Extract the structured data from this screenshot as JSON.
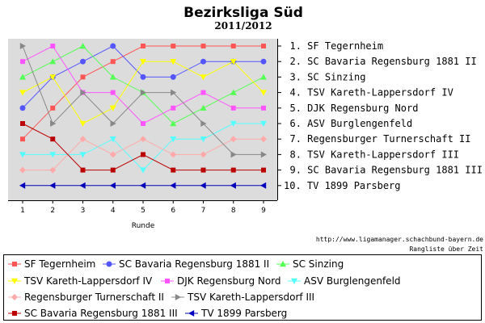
{
  "chart_data": {
    "type": "line",
    "title": "Bezirksliga Süd",
    "subtitle": "2011/2012",
    "xlabel": "Runde",
    "ylabel": "",
    "x": [
      1,
      2,
      3,
      4,
      5,
      6,
      7,
      8,
      9
    ],
    "ylim": [
      1,
      10
    ],
    "y_inverted": true,
    "grid": false,
    "legend_position": "bottom",
    "rank_labels": [
      "1. SF Tegernheim",
      "2. SC Bavaria Regensburg 1881 II",
      "3. SC Sinzing",
      "4. TSV Kareth-Lappersdorf IV",
      "5. DJK Regensburg Nord",
      "6. ASV Burglengenfeld",
      "7. Regensburger Turnerschaft II",
      "8. TSV Kareth-Lappersdorf III",
      "9. SC Bavaria Regensburg 1881 III",
      "10. TV 1899 Parsberg"
    ],
    "credit": [
      "http://www.ligamanager.schachbund-bayern.de",
      "Rangliste über Zeit"
    ],
    "series": [
      {
        "name": "SF Tegernheim",
        "color": "#ff5555",
        "marker": "square",
        "values": [
          7,
          5,
          3,
          2,
          1,
          1,
          1,
          1,
          1
        ]
      },
      {
        "name": "SC Bavaria Regensburg 1881 II",
        "color": "#5555ff",
        "marker": "circle",
        "values": [
          5,
          3,
          2,
          1,
          3,
          3,
          2,
          2,
          2
        ]
      },
      {
        "name": "SC Sinzing",
        "color": "#55ff55",
        "marker": "triangle-up",
        "values": [
          3,
          2,
          1,
          3,
          4,
          6,
          5,
          4,
          3
        ]
      },
      {
        "name": "TSV Kareth-Lappersdorf IV",
        "color": "#ffff00",
        "marker": "triangle-down",
        "values": [
          4,
          3,
          6,
          5,
          2,
          2,
          3,
          2,
          4
        ]
      },
      {
        "name": "DJK Regensburg Nord",
        "color": "#ff55ff",
        "marker": "square",
        "values": [
          2,
          1,
          4,
          4,
          6,
          5,
          4,
          5,
          5
        ]
      },
      {
        "name": "ASV Burglengenfeld",
        "color": "#55ffff",
        "marker": "triangle-down",
        "values": [
          8,
          8,
          8,
          7,
          9,
          7,
          7,
          6,
          6
        ]
      },
      {
        "name": "Regensburger Turnerschaft II",
        "color": "#ffaaaa",
        "marker": "diamond",
        "values": [
          9,
          9,
          7,
          8,
          7,
          8,
          8,
          7,
          7
        ]
      },
      {
        "name": "TSV Kareth-Lappersdorf III",
        "color": "#888888",
        "marker": "triangle-right",
        "values": [
          1,
          6,
          4,
          6,
          4,
          4,
          6,
          8,
          8
        ]
      },
      {
        "name": "SC Bavaria Regensburg 1881 III",
        "color": "#bb0000",
        "marker": "square",
        "values": [
          6,
          7,
          9,
          9,
          8,
          9,
          9,
          9,
          9
        ]
      },
      {
        "name": "TV 1899 Parsberg",
        "color": "#0000bb",
        "marker": "triangle-left",
        "values": [
          10,
          10,
          10,
          10,
          10,
          10,
          10,
          10,
          10
        ]
      }
    ]
  }
}
